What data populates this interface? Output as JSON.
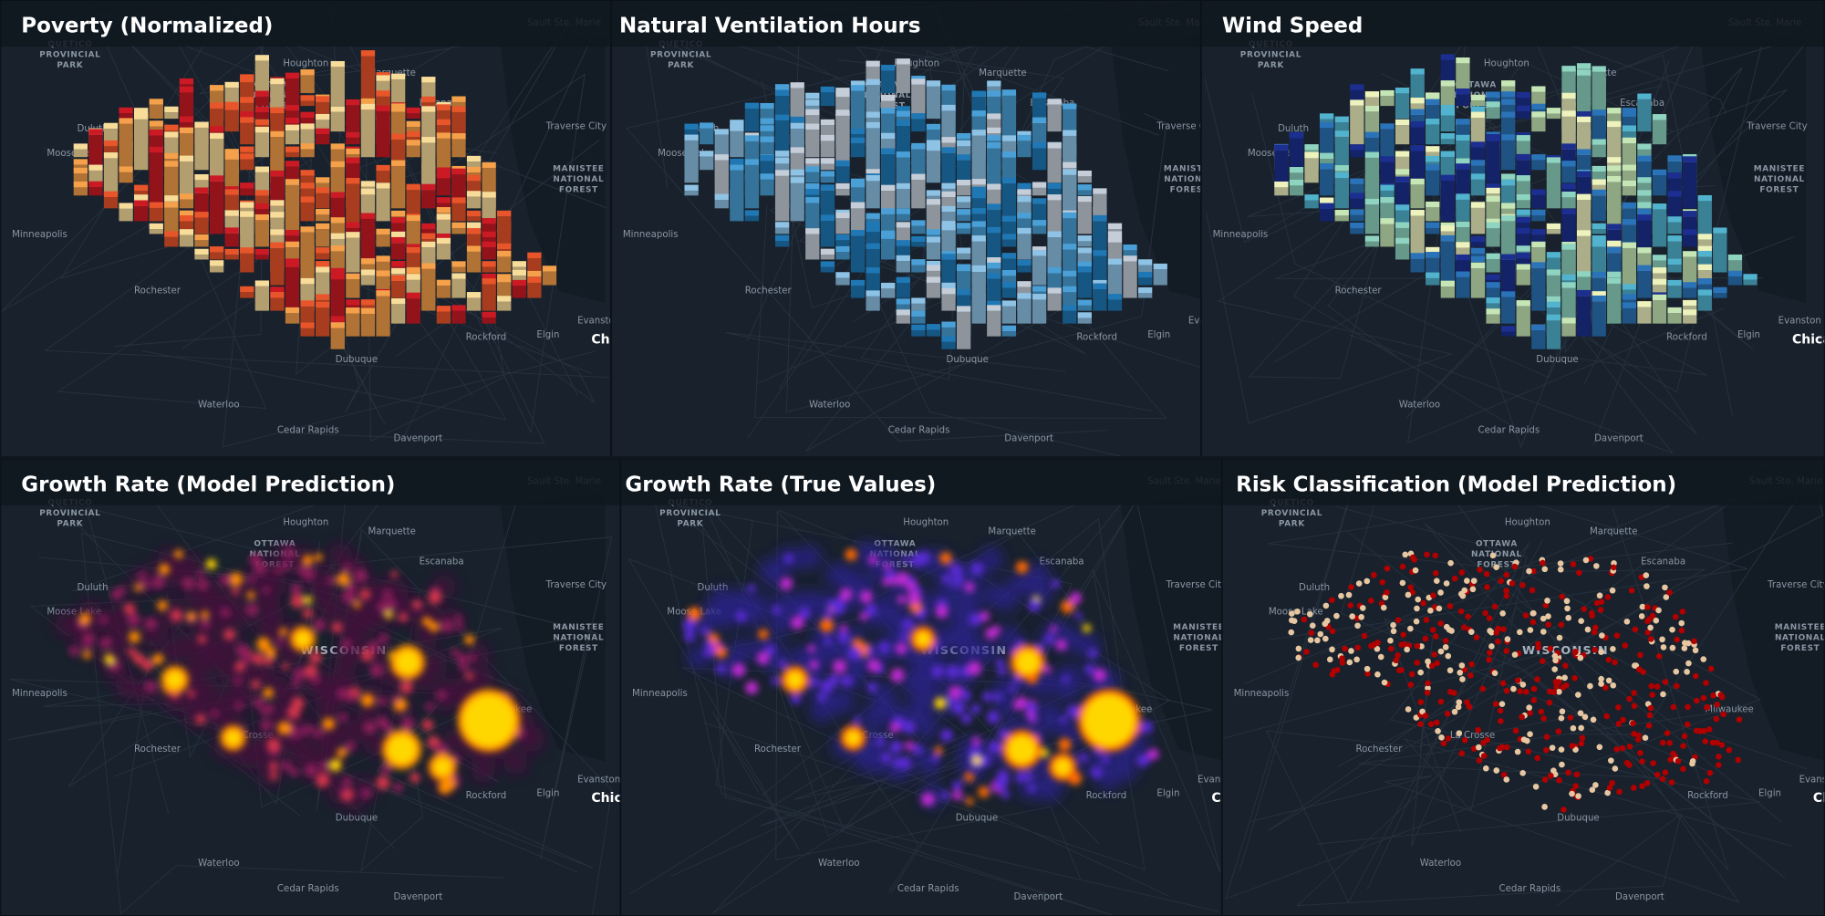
{
  "panels": [
    {
      "title": "Poverty (Normalized)",
      "style": "extrusion",
      "colors": [
        "#f7dc9a",
        "#f5a04a",
        "#e8552a",
        "#cc1a25"
      ]
    },
    {
      "title": "Natural Ventilation Hours",
      "style": "extrusion",
      "colors": [
        "#c4cdd8",
        "#8fc3e6",
        "#4aa0d6",
        "#1f78b4"
      ]
    },
    {
      "title": "Wind Speed",
      "style": "extrusion",
      "colors": [
        "#eef2bd",
        "#c6e6b5",
        "#8fd4c0",
        "#52b3cf",
        "#2b73b8",
        "#1c2f90"
      ]
    },
    {
      "title": "Growth Rate (Model Prediction)",
      "style": "heatmap",
      "colors": [
        "#4a0f3c",
        "#8a1a5a",
        "#d2344b",
        "#ff8c00",
        "#ffd700"
      ]
    },
    {
      "title": "Growth Rate (True Values)",
      "style": "heatmap",
      "colors": [
        "#2c2090",
        "#5a2cd6",
        "#c02ad0",
        "#ff6a00",
        "#ffd700"
      ]
    },
    {
      "title": "Risk Classification (Model Prediction)",
      "style": "points",
      "colors": [
        "#e6c7a2",
        "#b00000"
      ]
    }
  ],
  "map_labels": [
    "Sault Ste. Marie",
    [
      "QUETICO",
      "PROVINCIAL",
      "PARK"
    ],
    "Houghton",
    "Marquette",
    [
      "OTTAWA",
      "NATIONAL",
      "FOREST"
    ],
    "Escanaba",
    "Traverse City",
    "Moose Lake",
    [
      "MANISTEE",
      "NATIONAL",
      "FOREST"
    ],
    "Minneapolis",
    "Rochester",
    "Evanston",
    "Rockford",
    "Elgin",
    "Chicago",
    "Dubuque",
    "Waterloo",
    "Cedar Rapids",
    "Davenport",
    "Duluth"
  ],
  "heatmap_labels": [
    "WISCONSIN",
    "Milwaukee",
    "La Crosse"
  ]
}
